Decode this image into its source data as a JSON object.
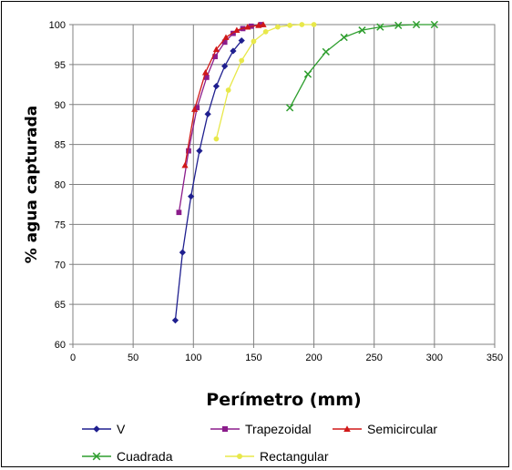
{
  "chart_data": {
    "type": "line",
    "title": "",
    "xlabel": "Perímetro (mm)",
    "ylabel": "% agua capturada",
    "xlim": [
      0,
      350
    ],
    "ylim": [
      60,
      100
    ],
    "x_ticks": [
      "0",
      "50",
      "100",
      "150",
      "200",
      "250",
      "300",
      "350"
    ],
    "y_ticks": [
      "60",
      "65",
      "70",
      "75",
      "80",
      "85",
      "90",
      "95",
      "100"
    ],
    "grid": true,
    "legend_position": "bottom",
    "series": [
      {
        "name": "V",
        "color": "#1f1f8f",
        "marker": "diamond",
        "points": [
          [
            85,
            63
          ],
          [
            91,
            71.5
          ],
          [
            98,
            78.5
          ],
          [
            105,
            84.2
          ],
          [
            112,
            88.8
          ],
          [
            119,
            92.3
          ],
          [
            126,
            94.8
          ],
          [
            133,
            96.7
          ],
          [
            140,
            98
          ]
        ]
      },
      {
        "name": "Trapezoidal",
        "color": "#8b1c8b",
        "marker": "square",
        "points": [
          [
            88,
            76.5
          ],
          [
            96,
            84.2
          ],
          [
            103,
            89.6
          ],
          [
            111,
            93.4
          ],
          [
            118,
            96
          ],
          [
            126,
            97.8
          ],
          [
            133,
            98.9
          ],
          [
            141,
            99.5
          ],
          [
            148,
            99.8
          ],
          [
            156,
            100
          ]
        ]
      },
      {
        "name": "Semicircular",
        "color": "#d01818",
        "marker": "triangle",
        "points": [
          [
            93,
            82.4
          ],
          [
            101,
            89.4
          ],
          [
            110,
            94
          ],
          [
            119,
            96.9
          ],
          [
            127,
            98.4
          ],
          [
            136,
            99.3
          ],
          [
            145,
            99.7
          ],
          [
            154,
            99.9
          ],
          [
            158,
            100
          ]
        ]
      },
      {
        "name": "Cuadrada",
        "color": "#2e9e2e",
        "marker": "x",
        "points": [
          [
            180,
            89.6
          ],
          [
            195,
            93.8
          ],
          [
            210,
            96.6
          ],
          [
            225,
            98.4
          ],
          [
            240,
            99.3
          ],
          [
            255,
            99.7
          ],
          [
            270,
            99.9
          ],
          [
            285,
            100
          ],
          [
            300,
            100
          ]
        ]
      },
      {
        "name": "Rectangular",
        "color": "#e8e84a",
        "marker": "circle",
        "points": [
          [
            119,
            85.7
          ],
          [
            129,
            91.8
          ],
          [
            140,
            95.5
          ],
          [
            150,
            97.9
          ],
          [
            160,
            99.1
          ],
          [
            170,
            99.7
          ],
          [
            180,
            99.9
          ],
          [
            190,
            100
          ],
          [
            200,
            100
          ]
        ]
      }
    ]
  }
}
